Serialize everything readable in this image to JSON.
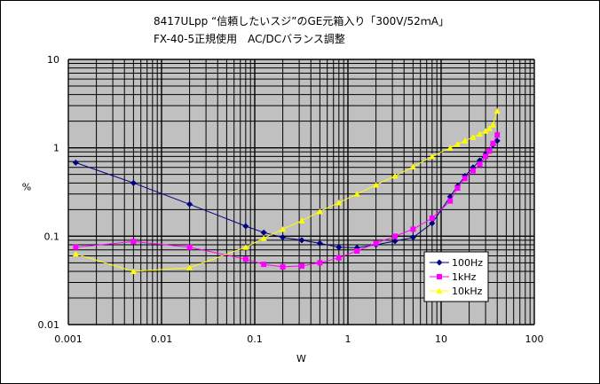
{
  "chart_data": {
    "type": "line",
    "title": "8417ULpp “信頼したいスジ”のGE元箱入り「300V/52ｍA」",
    "subtitle": "FX-40-5正規使用　AC/DCバランス調整",
    "xlabel": "W",
    "ylabel": "%",
    "xscale": "log",
    "yscale": "log",
    "xlim": [
      0.001,
      100
    ],
    "ylim": [
      0.01,
      10
    ],
    "x_ticks": [
      "0.001",
      "0.01",
      "0.1",
      "1",
      "10",
      "100"
    ],
    "y_ticks": [
      "0.01",
      "0.1",
      "1",
      "10"
    ],
    "grid": true,
    "legend_position": "bottom-right",
    "series": [
      {
        "name": "100Hz",
        "color": "#000080",
        "marker": "diamond",
        "x": [
          0.0012,
          0.005,
          0.02,
          0.08,
          0.125,
          0.2,
          0.32,
          0.5,
          0.8,
          1.25,
          2.0,
          3.2,
          5.0,
          8.0,
          12.5,
          15,
          18,
          22,
          26,
          30,
          33,
          36,
          40
        ],
        "y": [
          0.68,
          0.4,
          0.23,
          0.13,
          0.11,
          0.097,
          0.09,
          0.083,
          0.075,
          0.074,
          0.08,
          0.088,
          0.097,
          0.14,
          0.28,
          0.37,
          0.48,
          0.6,
          0.72,
          0.85,
          0.95,
          1.08,
          1.2
        ]
      },
      {
        "name": "1kHz",
        "color": "#ff00ff",
        "marker": "square",
        "x": [
          0.0012,
          0.005,
          0.02,
          0.08,
          0.125,
          0.2,
          0.32,
          0.5,
          0.8,
          1.25,
          2.0,
          3.2,
          5.0,
          8.0,
          12.5,
          15,
          18,
          22,
          26,
          30,
          33,
          36,
          40
        ],
        "y": [
          0.075,
          0.087,
          0.075,
          0.055,
          0.048,
          0.045,
          0.046,
          0.05,
          0.057,
          0.068,
          0.083,
          0.1,
          0.12,
          0.16,
          0.25,
          0.35,
          0.45,
          0.55,
          0.65,
          0.8,
          0.92,
          1.12,
          1.4
        ]
      },
      {
        "name": "10kHz",
        "color": "#ffff00",
        "marker": "triangle",
        "x": [
          0.0012,
          0.005,
          0.02,
          0.08,
          0.125,
          0.2,
          0.32,
          0.5,
          0.8,
          1.25,
          2.0,
          3.2,
          5.0,
          8.0,
          12.5,
          15,
          18,
          22,
          26,
          30,
          33,
          36,
          40
        ],
        "y": [
          0.063,
          0.04,
          0.044,
          0.075,
          0.095,
          0.12,
          0.15,
          0.19,
          0.24,
          0.3,
          0.38,
          0.48,
          0.61,
          0.8,
          1.0,
          1.1,
          1.2,
          1.32,
          1.43,
          1.55,
          1.66,
          1.82,
          2.6
        ]
      }
    ]
  }
}
